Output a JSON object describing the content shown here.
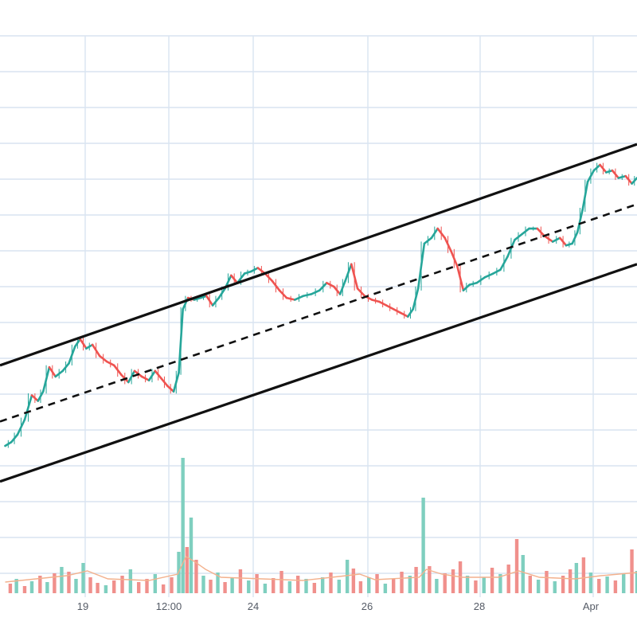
{
  "chart_data": {
    "type": "candlestick",
    "title": "",
    "grid": true,
    "x_tick_labels": [
      "19",
      "12:00",
      "24",
      "26",
      "28",
      "Apr"
    ],
    "price": {
      "series": [
        {
          "x": 0.0,
          "y": 17
        },
        {
          "x": 0.6,
          "y": 19
        },
        {
          "x": 1.2,
          "y": 23
        },
        {
          "x": 1.9,
          "y": 31
        },
        {
          "x": 2.6,
          "y": 44
        },
        {
          "x": 3.2,
          "y": 41
        },
        {
          "x": 3.7,
          "y": 46
        },
        {
          "x": 4.3,
          "y": 59
        },
        {
          "x": 4.9,
          "y": 54
        },
        {
          "x": 5.6,
          "y": 57
        },
        {
          "x": 6.2,
          "y": 61
        },
        {
          "x": 6.8,
          "y": 70
        },
        {
          "x": 7.3,
          "y": 74
        },
        {
          "x": 7.9,
          "y": 69
        },
        {
          "x": 8.5,
          "y": 71
        },
        {
          "x": 9.2,
          "y": 65
        },
        {
          "x": 9.9,
          "y": 62
        },
        {
          "x": 10.6,
          "y": 60
        },
        {
          "x": 11.3,
          "y": 55
        },
        {
          "x": 12.0,
          "y": 51
        },
        {
          "x": 12.6,
          "y": 57
        },
        {
          "x": 13.3,
          "y": 54
        },
        {
          "x": 14.0,
          "y": 52
        },
        {
          "x": 14.6,
          "y": 57
        },
        {
          "x": 15.2,
          "y": 53
        },
        {
          "x": 15.8,
          "y": 49
        },
        {
          "x": 16.4,
          "y": 46
        },
        {
          "x": 16.9,
          "y": 56
        },
        {
          "x": 17.3,
          "y": 90
        },
        {
          "x": 17.8,
          "y": 96
        },
        {
          "x": 18.4,
          "y": 95
        },
        {
          "x": 19.0,
          "y": 96
        },
        {
          "x": 19.6,
          "y": 97
        },
        {
          "x": 20.2,
          "y": 92
        },
        {
          "x": 20.8,
          "y": 96
        },
        {
          "x": 21.4,
          "y": 101
        },
        {
          "x": 22.0,
          "y": 108
        },
        {
          "x": 22.6,
          "y": 104
        },
        {
          "x": 23.3,
          "y": 109
        },
        {
          "x": 23.9,
          "y": 110
        },
        {
          "x": 24.6,
          "y": 112
        },
        {
          "x": 25.3,
          "y": 109
        },
        {
          "x": 26.0,
          "y": 105
        },
        {
          "x": 26.7,
          "y": 100
        },
        {
          "x": 27.4,
          "y": 96
        },
        {
          "x": 28.2,
          "y": 95
        },
        {
          "x": 29.0,
          "y": 97
        },
        {
          "x": 29.8,
          "y": 98
        },
        {
          "x": 30.6,
          "y": 100
        },
        {
          "x": 31.3,
          "y": 104
        },
        {
          "x": 32.0,
          "y": 102
        },
        {
          "x": 32.6,
          "y": 98
        },
        {
          "x": 33.1,
          "y": 105
        },
        {
          "x": 33.7,
          "y": 114
        },
        {
          "x": 34.3,
          "y": 101
        },
        {
          "x": 35.0,
          "y": 97
        },
        {
          "x": 35.7,
          "y": 95
        },
        {
          "x": 36.4,
          "y": 94
        },
        {
          "x": 37.1,
          "y": 92
        },
        {
          "x": 37.8,
          "y": 90
        },
        {
          "x": 38.5,
          "y": 88
        },
        {
          "x": 39.2,
          "y": 86
        },
        {
          "x": 39.7,
          "y": 90
        },
        {
          "x": 40.2,
          "y": 101
        },
        {
          "x": 40.8,
          "y": 125
        },
        {
          "x": 41.5,
          "y": 128
        },
        {
          "x": 42.1,
          "y": 133
        },
        {
          "x": 42.8,
          "y": 128
        },
        {
          "x": 43.4,
          "y": 121
        },
        {
          "x": 44.0,
          "y": 113
        },
        {
          "x": 44.6,
          "y": 100
        },
        {
          "x": 45.2,
          "y": 103
        },
        {
          "x": 45.9,
          "y": 104
        },
        {
          "x": 46.7,
          "y": 107
        },
        {
          "x": 47.5,
          "y": 109
        },
        {
          "x": 48.2,
          "y": 111
        },
        {
          "x": 48.9,
          "y": 118
        },
        {
          "x": 49.6,
          "y": 127
        },
        {
          "x": 50.3,
          "y": 130
        },
        {
          "x": 51.0,
          "y": 133
        },
        {
          "x": 51.8,
          "y": 133
        },
        {
          "x": 52.5,
          "y": 129
        },
        {
          "x": 53.3,
          "y": 126
        },
        {
          "x": 54.0,
          "y": 128
        },
        {
          "x": 54.6,
          "y": 124
        },
        {
          "x": 55.2,
          "y": 125
        },
        {
          "x": 55.7,
          "y": 131
        },
        {
          "x": 56.2,
          "y": 143
        },
        {
          "x": 56.7,
          "y": 158
        },
        {
          "x": 57.3,
          "y": 164
        },
        {
          "x": 57.9,
          "y": 167
        },
        {
          "x": 58.5,
          "y": 163
        },
        {
          "x": 59.1,
          "y": 164
        },
        {
          "x": 59.7,
          "y": 160
        },
        {
          "x": 60.4,
          "y": 161
        },
        {
          "x": 61.0,
          "y": 157
        },
        {
          "x": 61.5,
          "y": 160
        }
      ]
    },
    "volume": {
      "bars": [
        {
          "x": 0.5,
          "v": 12,
          "up": false
        },
        {
          "x": 1.1,
          "v": 18,
          "up": true
        },
        {
          "x": 1.9,
          "v": 9,
          "up": false
        },
        {
          "x": 2.6,
          "v": 15,
          "up": true
        },
        {
          "x": 3.4,
          "v": 22,
          "up": false
        },
        {
          "x": 4.1,
          "v": 14,
          "up": true
        },
        {
          "x": 4.8,
          "v": 25,
          "up": false
        },
        {
          "x": 5.5,
          "v": 33,
          "up": true
        },
        {
          "x": 6.2,
          "v": 27,
          "up": false
        },
        {
          "x": 6.9,
          "v": 18,
          "up": true
        },
        {
          "x": 7.6,
          "v": 38,
          "up": true
        },
        {
          "x": 8.3,
          "v": 20,
          "up": false
        },
        {
          "x": 9.0,
          "v": 13,
          "up": false
        },
        {
          "x": 9.8,
          "v": 10,
          "up": true
        },
        {
          "x": 10.6,
          "v": 16,
          "up": false
        },
        {
          "x": 11.4,
          "v": 22,
          "up": false
        },
        {
          "x": 12.2,
          "v": 30,
          "up": true
        },
        {
          "x": 13.0,
          "v": 14,
          "up": false
        },
        {
          "x": 13.8,
          "v": 18,
          "up": false
        },
        {
          "x": 14.6,
          "v": 24,
          "up": true
        },
        {
          "x": 15.4,
          "v": 11,
          "up": false
        },
        {
          "x": 16.2,
          "v": 20,
          "up": false
        },
        {
          "x": 16.9,
          "v": 52,
          "up": true
        },
        {
          "x": 17.3,
          "v": 170,
          "up": true
        },
        {
          "x": 17.7,
          "v": 58,
          "up": false
        },
        {
          "x": 18.1,
          "v": 95,
          "up": true
        },
        {
          "x": 18.6,
          "v": 42,
          "up": false
        },
        {
          "x": 19.3,
          "v": 22,
          "up": true
        },
        {
          "x": 20.0,
          "v": 17,
          "up": false
        },
        {
          "x": 20.7,
          "v": 26,
          "up": true
        },
        {
          "x": 21.4,
          "v": 14,
          "up": false
        },
        {
          "x": 22.1,
          "v": 20,
          "up": true
        },
        {
          "x": 22.9,
          "v": 30,
          "up": false
        },
        {
          "x": 23.7,
          "v": 16,
          "up": true
        },
        {
          "x": 24.5,
          "v": 24,
          "up": false
        },
        {
          "x": 25.3,
          "v": 12,
          "up": true
        },
        {
          "x": 26.1,
          "v": 19,
          "up": false
        },
        {
          "x": 26.9,
          "v": 28,
          "up": false
        },
        {
          "x": 27.7,
          "v": 15,
          "up": true
        },
        {
          "x": 28.5,
          "v": 22,
          "up": false
        },
        {
          "x": 29.3,
          "v": 18,
          "up": true
        },
        {
          "x": 30.1,
          "v": 13,
          "up": false
        },
        {
          "x": 30.9,
          "v": 20,
          "up": true
        },
        {
          "x": 31.7,
          "v": 26,
          "up": false
        },
        {
          "x": 32.5,
          "v": 17,
          "up": true
        },
        {
          "x": 33.3,
          "v": 42,
          "up": true
        },
        {
          "x": 33.9,
          "v": 31,
          "up": false
        },
        {
          "x": 34.6,
          "v": 15,
          "up": false
        },
        {
          "x": 35.4,
          "v": 20,
          "up": true
        },
        {
          "x": 36.2,
          "v": 24,
          "up": false
        },
        {
          "x": 37.0,
          "v": 12,
          "up": true
        },
        {
          "x": 37.8,
          "v": 18,
          "up": false
        },
        {
          "x": 38.6,
          "v": 27,
          "up": false
        },
        {
          "x": 39.4,
          "v": 22,
          "up": true
        },
        {
          "x": 40.0,
          "v": 33,
          "up": false
        },
        {
          "x": 40.7,
          "v": 120,
          "up": true
        },
        {
          "x": 41.3,
          "v": 34,
          "up": false
        },
        {
          "x": 42.0,
          "v": 18,
          "up": true
        },
        {
          "x": 42.8,
          "v": 25,
          "up": false
        },
        {
          "x": 43.6,
          "v": 30,
          "up": false
        },
        {
          "x": 44.3,
          "v": 40,
          "up": false
        },
        {
          "x": 45.0,
          "v": 22,
          "up": true
        },
        {
          "x": 45.8,
          "v": 16,
          "up": false
        },
        {
          "x": 46.6,
          "v": 20,
          "up": true
        },
        {
          "x": 47.4,
          "v": 32,
          "up": false
        },
        {
          "x": 48.2,
          "v": 24,
          "up": true
        },
        {
          "x": 49.0,
          "v": 36,
          "up": false
        },
        {
          "x": 49.8,
          "v": 68,
          "up": false
        },
        {
          "x": 50.4,
          "v": 48,
          "up": true
        },
        {
          "x": 51.1,
          "v": 22,
          "up": false
        },
        {
          "x": 51.9,
          "v": 17,
          "up": true
        },
        {
          "x": 52.7,
          "v": 28,
          "up": false
        },
        {
          "x": 53.5,
          "v": 15,
          "up": true
        },
        {
          "x": 54.3,
          "v": 22,
          "up": false
        },
        {
          "x": 55.0,
          "v": 30,
          "up": false
        },
        {
          "x": 55.6,
          "v": 38,
          "up": true
        },
        {
          "x": 56.3,
          "v": 45,
          "up": false
        },
        {
          "x": 57.0,
          "v": 26,
          "up": true
        },
        {
          "x": 57.8,
          "v": 18,
          "up": false
        },
        {
          "x": 58.6,
          "v": 21,
          "up": true
        },
        {
          "x": 59.4,
          "v": 16,
          "up": false
        },
        {
          "x": 60.2,
          "v": 24,
          "up": true
        },
        {
          "x": 61.0,
          "v": 55,
          "up": false
        },
        {
          "x": 61.5,
          "v": 28,
          "up": true
        }
      ],
      "moving_average": [
        {
          "x": 0.0,
          "v": 14
        },
        {
          "x": 6.0,
          "v": 22
        },
        {
          "x": 8.0,
          "v": 28
        },
        {
          "x": 10.0,
          "v": 18
        },
        {
          "x": 14.0,
          "v": 16
        },
        {
          "x": 16.8,
          "v": 24
        },
        {
          "x": 17.6,
          "v": 46
        },
        {
          "x": 18.4,
          "v": 40
        },
        {
          "x": 19.5,
          "v": 30
        },
        {
          "x": 21.0,
          "v": 20
        },
        {
          "x": 25.0,
          "v": 18
        },
        {
          "x": 29.0,
          "v": 16
        },
        {
          "x": 33.2,
          "v": 22
        },
        {
          "x": 34.5,
          "v": 24
        },
        {
          "x": 36.0,
          "v": 17
        },
        {
          "x": 40.3,
          "v": 20
        },
        {
          "x": 41.0,
          "v": 30
        },
        {
          "x": 42.5,
          "v": 24
        },
        {
          "x": 44.5,
          "v": 20
        },
        {
          "x": 48.0,
          "v": 20
        },
        {
          "x": 50.0,
          "v": 28
        },
        {
          "x": 52.0,
          "v": 20
        },
        {
          "x": 55.5,
          "v": 18
        },
        {
          "x": 58.0,
          "v": 22
        },
        {
          "x": 61.5,
          "v": 26
        }
      ]
    },
    "channel": {
      "upper": [
        {
          "x": -0.5,
          "y": 60
        },
        {
          "x": 61.5,
          "y": 178
        }
      ],
      "middle": [
        {
          "x": -0.5,
          "y": 30
        },
        {
          "x": 61.5,
          "y": 146
        }
      ],
      "lower": [
        {
          "x": -0.5,
          "y": -2
        },
        {
          "x": 61.5,
          "y": 114
        }
      ]
    },
    "colors": {
      "up": "#26a69a",
      "down": "#ef5350",
      "volume_up": "#7fcfbf",
      "volume_down": "#f0908c",
      "moving_average": "#f3b18d",
      "channel": "#111111",
      "grid": "#d9e4f1",
      "tick_text": "#555b66"
    }
  }
}
